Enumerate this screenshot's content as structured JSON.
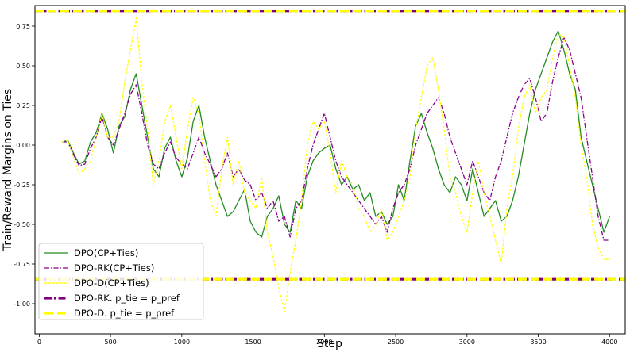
{
  "chart_data": {
    "type": "line",
    "title": "",
    "xlabel": "Step",
    "ylabel": "Train/Reward Margins on Ties",
    "xlim": [
      -30,
      4110
    ],
    "ylim": [
      -1.19,
      0.88
    ],
    "xticks": [
      0,
      500,
      1000,
      1500,
      2000,
      2500,
      3000,
      3500,
      4000
    ],
    "yticks": [
      -1.0,
      -0.75,
      -0.5,
      -0.25,
      0.0,
      0.25,
      0.5,
      0.75
    ],
    "grid": false,
    "legend_position": "lower-left",
    "series": [
      {
        "name": "DPO(CP+Ties)",
        "color": "#228B22",
        "style": "solid",
        "x": [
          160,
          200,
          240,
          280,
          320,
          360,
          400,
          440,
          480,
          520,
          560,
          600,
          640,
          680,
          720,
          760,
          800,
          840,
          880,
          920,
          960,
          1000,
          1040,
          1080,
          1120,
          1160,
          1200,
          1240,
          1280,
          1320,
          1360,
          1400,
          1440,
          1480,
          1520,
          1560,
          1600,
          1640,
          1680,
          1720,
          1760,
          1800,
          1840,
          1880,
          1920,
          1960,
          2000,
          2040,
          2080,
          2120,
          2160,
          2200,
          2240,
          2280,
          2320,
          2360,
          2400,
          2440,
          2480,
          2520,
          2560,
          2600,
          2640,
          2680,
          2720,
          2760,
          2800,
          2840,
          2880,
          2920,
          2960,
          3000,
          3040,
          3080,
          3120,
          3160,
          3200,
          3240,
          3280,
          3320,
          3360,
          3400,
          3440,
          3480,
          3520,
          3560,
          3600,
          3640,
          3680,
          3720,
          3760,
          3800,
          3840,
          3880,
          3920,
          3960,
          4000
        ],
        "values": [
          0.02,
          0.03,
          -0.05,
          -0.12,
          -0.1,
          0.02,
          0.08,
          0.2,
          0.1,
          -0.05,
          0.12,
          0.18,
          0.35,
          0.45,
          0.25,
          0.05,
          -0.15,
          -0.2,
          -0.02,
          0.05,
          -0.1,
          -0.2,
          -0.08,
          0.15,
          0.25,
          0.05,
          -0.1,
          -0.25,
          -0.35,
          -0.45,
          -0.42,
          -0.35,
          -0.28,
          -0.48,
          -0.55,
          -0.58,
          -0.45,
          -0.4,
          -0.32,
          -0.5,
          -0.55,
          -0.35,
          -0.4,
          -0.2,
          -0.1,
          -0.05,
          -0.02,
          0.0,
          -0.15,
          -0.25,
          -0.2,
          -0.28,
          -0.25,
          -0.35,
          -0.3,
          -0.45,
          -0.42,
          -0.5,
          -0.45,
          -0.25,
          -0.35,
          -0.1,
          0.12,
          0.2,
          0.08,
          -0.02,
          -0.15,
          -0.25,
          -0.3,
          -0.2,
          -0.25,
          -0.35,
          -0.15,
          -0.3,
          -0.45,
          -0.4,
          -0.35,
          -0.48,
          -0.45,
          -0.35,
          -0.2,
          0.0,
          0.2,
          0.35,
          0.45,
          0.55,
          0.65,
          0.72,
          0.6,
          0.45,
          0.35,
          0.05,
          -0.1,
          -0.25,
          -0.4,
          -0.55,
          -0.45
        ]
      },
      {
        "name": "DPO-RK(CP+Ties)",
        "color": "#8B008B",
        "style": "dashdot",
        "x": [
          160,
          200,
          240,
          280,
          320,
          360,
          400,
          440,
          480,
          520,
          560,
          600,
          640,
          680,
          720,
          760,
          800,
          840,
          880,
          920,
          960,
          1000,
          1040,
          1080,
          1120,
          1160,
          1200,
          1240,
          1280,
          1320,
          1360,
          1400,
          1440,
          1480,
          1520,
          1560,
          1600,
          1640,
          1680,
          1720,
          1760,
          1800,
          1840,
          1880,
          1920,
          1960,
          2000,
          2040,
          2080,
          2120,
          2160,
          2200,
          2240,
          2280,
          2320,
          2360,
          2400,
          2440,
          2480,
          2520,
          2560,
          2600,
          2640,
          2680,
          2720,
          2760,
          2800,
          2840,
          2880,
          2920,
          2960,
          3000,
          3040,
          3080,
          3120,
          3160,
          3200,
          3240,
          3280,
          3320,
          3360,
          3400,
          3440,
          3480,
          3520,
          3560,
          3600,
          3640,
          3680,
          3720,
          3760,
          3800,
          3840,
          3880,
          3920,
          3960,
          4000
        ],
        "values": [
          0.02,
          0.02,
          -0.06,
          -0.13,
          -0.12,
          -0.02,
          0.05,
          0.18,
          0.05,
          0.0,
          0.1,
          0.2,
          0.32,
          0.38,
          0.2,
          0.0,
          -0.12,
          -0.15,
          -0.05,
          0.02,
          -0.08,
          -0.12,
          -0.15,
          -0.05,
          0.05,
          -0.05,
          -0.12,
          -0.2,
          -0.15,
          -0.05,
          -0.2,
          -0.15,
          -0.22,
          -0.25,
          -0.35,
          -0.3,
          -0.4,
          -0.35,
          -0.48,
          -0.45,
          -0.58,
          -0.4,
          -0.35,
          -0.15,
          0.0,
          0.1,
          0.2,
          0.05,
          -0.1,
          -0.2,
          -0.25,
          -0.3,
          -0.35,
          -0.4,
          -0.45,
          -0.5,
          -0.45,
          -0.55,
          -0.4,
          -0.3,
          -0.25,
          -0.15,
          0.0,
          0.1,
          0.2,
          0.25,
          0.3,
          0.2,
          0.05,
          -0.05,
          -0.15,
          -0.25,
          -0.1,
          -0.2,
          -0.3,
          -0.35,
          -0.2,
          -0.1,
          0.05,
          0.2,
          0.3,
          0.38,
          0.42,
          0.3,
          0.15,
          0.2,
          0.4,
          0.55,
          0.68,
          0.6,
          0.45,
          0.3,
          0.05,
          -0.2,
          -0.45,
          -0.6,
          -0.6
        ]
      },
      {
        "name": "DPO-D(CP+Ties)",
        "color": "#FFFF00",
        "style": "dashed",
        "x": [
          160,
          200,
          240,
          280,
          320,
          360,
          400,
          440,
          480,
          520,
          560,
          600,
          640,
          680,
          720,
          760,
          800,
          840,
          880,
          920,
          960,
          1000,
          1040,
          1080,
          1120,
          1160,
          1200,
          1240,
          1280,
          1320,
          1360,
          1400,
          1440,
          1480,
          1520,
          1560,
          1600,
          1640,
          1680,
          1720,
          1760,
          1800,
          1840,
          1880,
          1920,
          1960,
          2000,
          2040,
          2080,
          2120,
          2160,
          2200,
          2240,
          2280,
          2320,
          2360,
          2400,
          2440,
          2480,
          2520,
          2560,
          2600,
          2640,
          2680,
          2720,
          2760,
          2800,
          2840,
          2880,
          2920,
          2960,
          3000,
          3040,
          3080,
          3120,
          3160,
          3200,
          3240,
          3280,
          3320,
          3360,
          3400,
          3440,
          3480,
          3520,
          3560,
          3600,
          3640,
          3680,
          3720,
          3760,
          3800,
          3840,
          3880,
          3920,
          3960,
          4000
        ],
        "values": [
          0.02,
          0.03,
          -0.08,
          -0.18,
          -0.15,
          -0.1,
          0.05,
          0.2,
          0.05,
          0.05,
          0.15,
          0.4,
          0.6,
          0.8,
          0.4,
          0.1,
          -0.25,
          -0.1,
          0.15,
          0.25,
          0.05,
          -0.15,
          0.1,
          0.3,
          0.2,
          -0.1,
          -0.35,
          -0.45,
          -0.15,
          0.05,
          -0.25,
          -0.1,
          -0.3,
          -0.35,
          -0.4,
          -0.2,
          -0.55,
          -0.7,
          -0.9,
          -1.05,
          -0.8,
          -0.6,
          -0.35,
          0.0,
          0.15,
          0.1,
          0.15,
          -0.05,
          -0.3,
          -0.1,
          -0.2,
          -0.25,
          -0.4,
          -0.45,
          -0.55,
          -0.5,
          -0.4,
          -0.6,
          -0.55,
          -0.45,
          -0.35,
          -0.2,
          0.1,
          0.3,
          0.5,
          0.55,
          0.35,
          0.1,
          -0.2,
          -0.3,
          -0.45,
          -0.55,
          -0.3,
          -0.1,
          -0.3,
          -0.45,
          -0.6,
          -0.75,
          -0.4,
          -0.2,
          0.1,
          0.3,
          0.38,
          0.2,
          0.3,
          0.35,
          0.55,
          0.7,
          0.68,
          0.5,
          0.3,
          0.0,
          -0.2,
          -0.5,
          -0.65,
          -0.72,
          -0.72
        ]
      },
      {
        "name": "DPO-RK. p_tie = p_pref",
        "color": "#800080",
        "style": "dashdot-thick",
        "hlines": [
          0.846,
          -0.846
        ]
      },
      {
        "name": "DPO-D. p_tie = p_pref",
        "color": "#FFFF00",
        "style": "dashed-thick",
        "hlines": [
          0.846,
          -0.846
        ]
      }
    ]
  }
}
